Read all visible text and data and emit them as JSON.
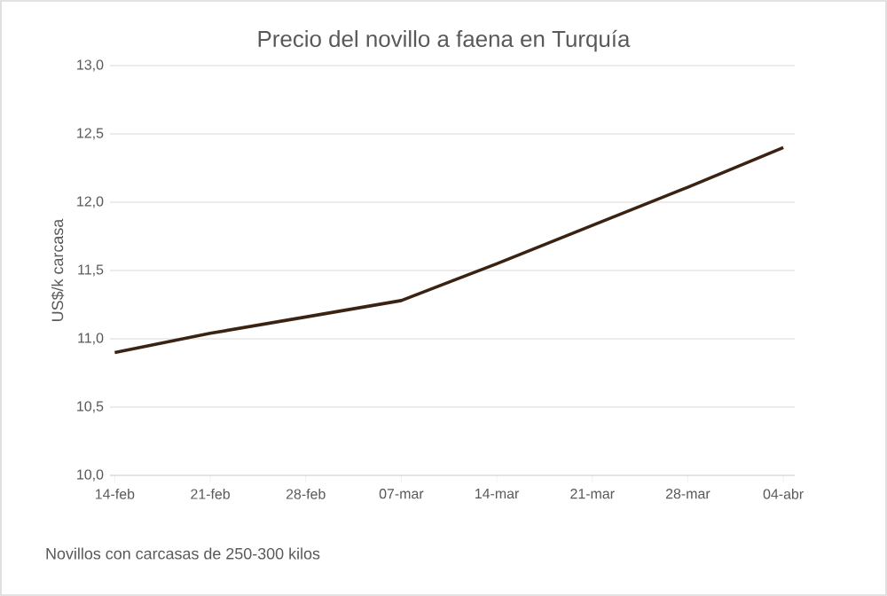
{
  "chart_data": {
    "type": "line",
    "title": "Precio del novillo a faena en Turquía",
    "ylabel": "US$/k carcasa",
    "categories": [
      "14-feb",
      "21-feb",
      "28-feb",
      "07-mar",
      "14-mar",
      "21-mar",
      "28-mar",
      "04-abr"
    ],
    "series": [
      {
        "color": "#3b2314",
        "values": [
          10.9,
          11.04,
          11.16,
          11.28,
          11.55,
          11.83,
          12.11,
          12.4
        ]
      }
    ],
    "ylim": [
      10.0,
      13.0
    ],
    "yticks": [
      {
        "value": 10.0,
        "label": "10,0"
      },
      {
        "value": 10.5,
        "label": "10,5"
      },
      {
        "value": 11.0,
        "label": "11,0"
      },
      {
        "value": 11.5,
        "label": "11,5"
      },
      {
        "value": 12.0,
        "label": "12,0"
      },
      {
        "value": 12.5,
        "label": "12,5"
      },
      {
        "value": 13.0,
        "label": "13,0"
      }
    ],
    "grid": "y",
    "marker": "none",
    "line_style": "solid",
    "annotations": [
      "Novillos con carcasas de 250-300 kilos"
    ]
  }
}
